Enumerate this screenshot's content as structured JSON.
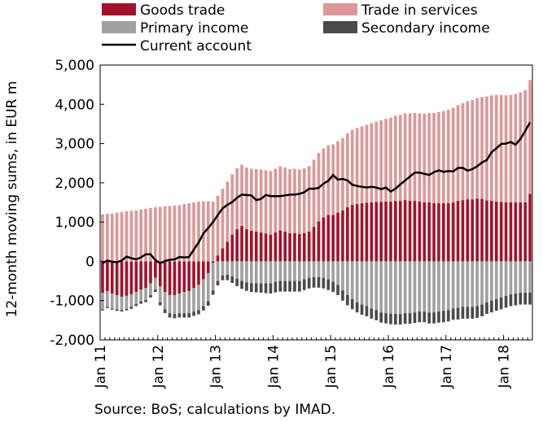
{
  "chart_data": {
    "type": "bar",
    "subtype": "stacked bar with line overlay",
    "title": "",
    "ylabel": "12-month moving sums, in EUR m",
    "source": "Source: BoS; calculations by IMAD.",
    "ylim": [
      -2000,
      5000
    ],
    "yticks": [
      "5,000",
      "4,000",
      "3,000",
      "2,000",
      "1,000",
      "0",
      "-1,000",
      "-2,000"
    ],
    "ytick_values": [
      5000,
      4000,
      3000,
      2000,
      1000,
      0,
      -1000,
      -2000
    ],
    "xticks": [
      "Jan 11",
      "Jan 12",
      "Jan 13",
      "Jan 14",
      "Jan 15",
      "Jan 16",
      "Jan 17",
      "Jan 18"
    ],
    "grid": false,
    "legend_position": "top",
    "frequency": "monthly",
    "x_start": "Jan 2011",
    "x_end": "Aug 2018",
    "series": [
      {
        "name": "Goods trade",
        "kind": "bar",
        "color": "#a3122b",
        "values": [
          -800,
          -760,
          -820,
          -860,
          -900,
          -880,
          -840,
          -780,
          -720,
          -680,
          -560,
          -420,
          -640,
          -780,
          -860,
          -860,
          -820,
          -780,
          -760,
          -680,
          -600,
          -460,
          -300,
          -40,
          150,
          330,
          500,
          680,
          820,
          900,
          820,
          780,
          760,
          740,
          710,
          680,
          740,
          790,
          760,
          720,
          720,
          700,
          720,
          760,
          880,
          1020,
          1120,
          1180,
          1180,
          1240,
          1300,
          1380,
          1440,
          1460,
          1480,
          1490,
          1500,
          1510,
          1510,
          1520,
          1520,
          1540,
          1540,
          1560,
          1540,
          1540,
          1520,
          1500,
          1500,
          1480,
          1480,
          1480,
          1480,
          1500,
          1540,
          1560,
          1580,
          1580,
          1600,
          1590,
          1550,
          1540,
          1520,
          1510,
          1500,
          1500,
          1500,
          1500,
          1500,
          1720
        ]
      },
      {
        "name": "Trade in services",
        "kind": "bar",
        "color": "#dc9898",
        "values": [
          1200,
          1210,
          1220,
          1240,
          1260,
          1280,
          1290,
          1300,
          1320,
          1340,
          1360,
          1380,
          1390,
          1400,
          1410,
          1420,
          1430,
          1460,
          1480,
          1500,
          1520,
          1530,
          1530,
          1520,
          1520,
          1520,
          1530,
          1540,
          1550,
          1560,
          1570,
          1580,
          1590,
          1600,
          1610,
          1620,
          1620,
          1630,
          1630,
          1630,
          1640,
          1640,
          1650,
          1670,
          1710,
          1740,
          1760,
          1780,
          1800,
          1820,
          1840,
          1880,
          1910,
          1940,
          1960,
          1990,
          2020,
          2050,
          2080,
          2110,
          2140,
          2170,
          2190,
          2210,
          2230,
          2240,
          2250,
          2260,
          2280,
          2300,
          2320,
          2350,
          2380,
          2410,
          2440,
          2470,
          2500,
          2530,
          2560,
          2600,
          2650,
          2690,
          2720,
          2730,
          2730,
          2740,
          2760,
          2800,
          2860,
          2900
        ]
      },
      {
        "name": "Primary income",
        "kind": "bar",
        "color": "#a0a0a0",
        "values": [
          -420,
          -400,
          -380,
          -360,
          -340,
          -330,
          -320,
          -310,
          -300,
          -300,
          -300,
          -300,
          -400,
          -440,
          -460,
          -480,
          -500,
          -540,
          -560,
          -600,
          -640,
          -680,
          -720,
          -700,
          -500,
          -360,
          -340,
          -380,
          -440,
          -500,
          -540,
          -560,
          -560,
          -560,
          -560,
          -560,
          -520,
          -500,
          -500,
          -500,
          -500,
          -500,
          -460,
          -420,
          -400,
          -400,
          -420,
          -460,
          -520,
          -600,
          -740,
          -860,
          -960,
          -1040,
          -1100,
          -1140,
          -1200,
          -1240,
          -1300,
          -1320,
          -1330,
          -1340,
          -1340,
          -1320,
          -1320,
          -1300,
          -1280,
          -1280,
          -1300,
          -1300,
          -1280,
          -1260,
          -1240,
          -1200,
          -1180,
          -1160,
          -1160,
          -1160,
          -1140,
          -1100,
          -1040,
          -1000,
          -960,
          -920,
          -880,
          -840,
          -820,
          -800,
          -800,
          -800
        ]
      },
      {
        "name": "Secondary income",
        "kind": "bar",
        "color": "#4a4a4a",
        "values": [
          -30,
          -30,
          -30,
          -40,
          -40,
          -40,
          -50,
          -50,
          -60,
          -60,
          -60,
          -60,
          -80,
          -100,
          -110,
          -110,
          -110,
          -110,
          -110,
          -110,
          -110,
          -110,
          -110,
          -110,
          -110,
          -120,
          -140,
          -170,
          -190,
          -200,
          -210,
          -220,
          -230,
          -240,
          -250,
          -260,
          -270,
          -270,
          -270,
          -270,
          -270,
          -270,
          -270,
          -270,
          -270,
          -270,
          -270,
          -270,
          -260,
          -260,
          -260,
          -260,
          -260,
          -260,
          -260,
          -260,
          -260,
          -260,
          -260,
          -260,
          -270,
          -270,
          -270,
          -270,
          -270,
          -270,
          -270,
          -270,
          -280,
          -280,
          -280,
          -290,
          -290,
          -290,
          -300,
          -300,
          -300,
          -300,
          -300,
          -300,
          -300,
          -300,
          -300,
          -300,
          -300,
          -300,
          -300,
          -300,
          -300,
          -300
        ]
      },
      {
        "name": "Current account",
        "kind": "line",
        "color": "#000000",
        "values": [
          -50,
          20,
          -10,
          -20,
          20,
          120,
          80,
          50,
          100,
          180,
          180,
          30,
          -50,
          10,
          40,
          50,
          110,
          100,
          110,
          300,
          480,
          710,
          850,
          1000,
          1180,
          1350,
          1440,
          1510,
          1620,
          1700,
          1690,
          1680,
          1560,
          1590,
          1690,
          1660,
          1660,
          1660,
          1680,
          1700,
          1700,
          1720,
          1760,
          1850,
          1850,
          1870,
          1980,
          2050,
          2200,
          2080,
          2100,
          2060,
          1950,
          1920,
          1900,
          1880,
          1900,
          1880,
          1840,
          1880,
          1780,
          1850,
          1960,
          2060,
          2160,
          2260,
          2260,
          2230,
          2200,
          2270,
          2320,
          2280,
          2300,
          2290,
          2380,
          2380,
          2310,
          2350,
          2420,
          2520,
          2580,
          2780,
          2880,
          2990,
          3000,
          3040,
          2970,
          3120,
          3320,
          3540
        ]
      }
    ]
  }
}
